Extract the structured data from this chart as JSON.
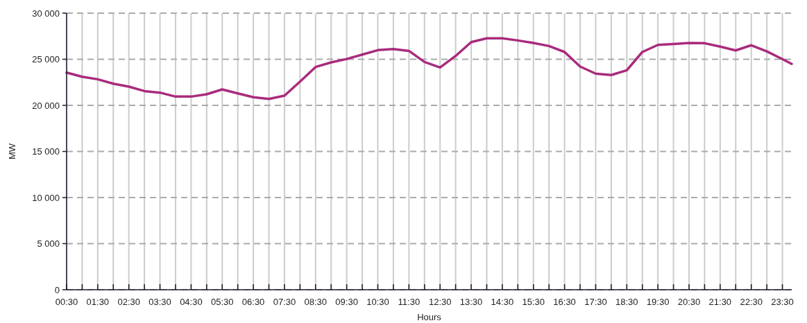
{
  "chart_data": {
    "type": "line",
    "xlabel": "Hours",
    "ylabel": "MW",
    "x": [
      0.5,
      1,
      1.5,
      2,
      2.5,
      3,
      3.5,
      4,
      4.5,
      5,
      5.5,
      6,
      6.5,
      7,
      7.5,
      8,
      8.5,
      9,
      9.5,
      10,
      10.5,
      11,
      11.5,
      12,
      12.5,
      13,
      13.5,
      14,
      14.5,
      15,
      15.5,
      16,
      16.5,
      17,
      17.5,
      18,
      18.5,
      19,
      19.5,
      20,
      20.5,
      21,
      21.5,
      22,
      22.5,
      23,
      23.5,
      23.8
    ],
    "series": [
      {
        "color": "#a92b7c",
        "values": [
          23550,
          23100,
          22830,
          22350,
          22030,
          21550,
          21380,
          20950,
          20950,
          21200,
          21730,
          21300,
          20880,
          20700,
          21050,
          22580,
          24160,
          24660,
          25030,
          25510,
          25990,
          26110,
          25910,
          24710,
          24110,
          25360,
          26860,
          27270,
          27270,
          27040,
          26770,
          26440,
          25790,
          24210,
          23440,
          23290,
          23810,
          25790,
          26560,
          26660,
          26770,
          26740,
          26370,
          25960,
          26520,
          25860,
          25020,
          24490
        ]
      }
    ],
    "xlim": [
      0.5,
      23.8
    ],
    "xticks": [
      {
        "value": 0.5,
        "label": "00:30"
      },
      {
        "value": 1,
        "label": null
      },
      {
        "value": 1.5,
        "label": "01:30"
      },
      {
        "value": 2,
        "label": null
      },
      {
        "value": 2.5,
        "label": "02:30"
      },
      {
        "value": 3,
        "label": null
      },
      {
        "value": 3.5,
        "label": "03:30"
      },
      {
        "value": 4,
        "label": null
      },
      {
        "value": 4.5,
        "label": "04:30"
      },
      {
        "value": 5,
        "label": null
      },
      {
        "value": 5.5,
        "label": "05:30"
      },
      {
        "value": 6,
        "label": null
      },
      {
        "value": 6.5,
        "label": "06:30"
      },
      {
        "value": 7,
        "label": null
      },
      {
        "value": 7.5,
        "label": "07:30"
      },
      {
        "value": 8,
        "label": null
      },
      {
        "value": 8.5,
        "label": "08:30"
      },
      {
        "value": 9,
        "label": null
      },
      {
        "value": 9.5,
        "label": "09:30"
      },
      {
        "value": 10,
        "label": null
      },
      {
        "value": 10.5,
        "label": "10:30"
      },
      {
        "value": 11,
        "label": null
      },
      {
        "value": 11.5,
        "label": "11:30"
      },
      {
        "value": 12,
        "label": null
      },
      {
        "value": 12.5,
        "label": "12:30"
      },
      {
        "value": 13,
        "label": null
      },
      {
        "value": 13.5,
        "label": "13:30"
      },
      {
        "value": 14,
        "label": null
      },
      {
        "value": 14.5,
        "label": "14:30"
      },
      {
        "value": 15,
        "label": null
      },
      {
        "value": 15.5,
        "label": "15:30"
      },
      {
        "value": 16,
        "label": null
      },
      {
        "value": 16.5,
        "label": "16:30"
      },
      {
        "value": 17,
        "label": null
      },
      {
        "value": 17.5,
        "label": "17:30"
      },
      {
        "value": 18,
        "label": null
      },
      {
        "value": 18.5,
        "label": "18:30"
      },
      {
        "value": 19,
        "label": null
      },
      {
        "value": 19.5,
        "label": "19:30"
      },
      {
        "value": 20,
        "label": null
      },
      {
        "value": 20.5,
        "label": "20:30"
      },
      {
        "value": 21,
        "label": null
      },
      {
        "value": 21.5,
        "label": "21:30"
      },
      {
        "value": 22,
        "label": null
      },
      {
        "value": 22.5,
        "label": "22:30"
      },
      {
        "value": 23,
        "label": null
      },
      {
        "value": 23.5,
        "label": "23:30"
      }
    ],
    "ylim": [
      0,
      30000
    ],
    "yticks": [
      0,
      {
        "value": 5000,
        "label": "5 000"
      },
      {
        "value": 10000,
        "label": "10 000"
      },
      {
        "value": 15000,
        "label": "15 000"
      },
      {
        "value": 20000,
        "label": "20 000"
      },
      {
        "value": 25000,
        "label": "25 000"
      },
      {
        "value": 30000,
        "label": "30 000"
      }
    ],
    "grid": true,
    "marker": "none",
    "line_style": "solid"
  }
}
